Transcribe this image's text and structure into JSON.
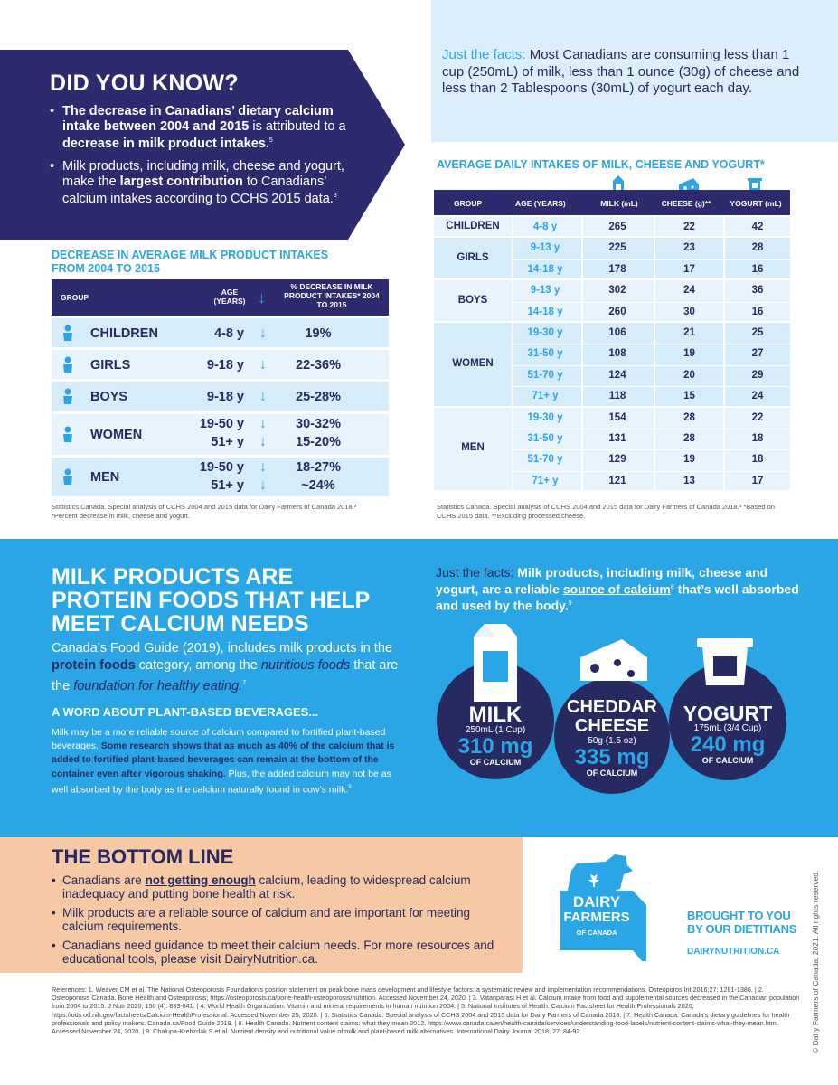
{
  "did_you_know": {
    "title": "DID YOU KNOW?",
    "bullet1_bold": "The decrease in Canadians’ dietary calcium intake between 2004 and 2015",
    "bullet1_mid": " is attributed to a ",
    "bullet1_bold2": "decrease in milk product intakes.",
    "bullet1_ref": "5",
    "bullet2_a": "Milk products, including milk, cheese and yogurt, make the ",
    "bullet2_bold": "largest contribution",
    "bullet2_b": " to Canadians’ calcium intakes according to CCHS 2015 data.",
    "bullet2_ref": "3"
  },
  "facts_top": {
    "lead": "Just the facts:",
    "text": " Most Canadians are consuming less than 1 cup (250mL) of milk, less than 1 ounce (30g) of cheese and less than 2 Tablespoons (30mL) of yogurt each day."
  },
  "left_table": {
    "title": "DECREASE IN AVERAGE MILK PRODUCT INTAKES FROM 2004 TO 2015",
    "headers": {
      "group": "GROUP",
      "age": "AGE (YEARS)",
      "pct": "% DECREASE IN MILK PRODUCT INTAKES* 2004 TO 2015"
    },
    "rows": [
      {
        "group": "CHILDREN",
        "ages": [
          "4-8 y"
        ],
        "pcts": [
          "19%"
        ]
      },
      {
        "group": "GIRLS",
        "ages": [
          "9-18 y"
        ],
        "pcts": [
          "22-36%"
        ]
      },
      {
        "group": "BOYS",
        "ages": [
          "9-18 y"
        ],
        "pcts": [
          "25-28%"
        ]
      },
      {
        "group": "WOMEN",
        "ages": [
          "19-50 y",
          "51+ y"
        ],
        "pcts": [
          "30-32%",
          "15-20%"
        ]
      },
      {
        "group": "MEN",
        "ages": [
          "19-50 y",
          "51+ y"
        ],
        "pcts": [
          "18-27%",
          "~24%"
        ]
      }
    ],
    "note": "Statistics Canada. Special analysis of CCHS 2004 and 2015 data for Dairy Farmers of Canada 2018.³ *Percent decrease in milk, cheese and yogurt."
  },
  "right_table": {
    "title": "AVERAGE DAILY INTAKES OF MILK, CHEESE AND YOGURT*",
    "headers": {
      "group": "GROUP",
      "age": "AGE (YEARS)",
      "milk": "MILK (mL)",
      "cheese": "CHEESE (g)**",
      "yogurt": "YOGURT (mL)"
    },
    "groups": [
      {
        "name": "CHILDREN",
        "rows": [
          [
            "4-8 y",
            "265",
            "22",
            "42"
          ]
        ]
      },
      {
        "name": "GIRLS",
        "rows": [
          [
            "9-13 y",
            "225",
            "23",
            "28"
          ],
          [
            "14-18 y",
            "178",
            "17",
            "16"
          ]
        ]
      },
      {
        "name": "BOYS",
        "rows": [
          [
            "9-13 y",
            "302",
            "24",
            "36"
          ],
          [
            "14-18 y",
            "260",
            "30",
            "16"
          ]
        ]
      },
      {
        "name": "WOMEN",
        "rows": [
          [
            "19-30 y",
            "106",
            "21",
            "25"
          ],
          [
            "31-50 y",
            "108",
            "19",
            "27"
          ],
          [
            "51-70 y",
            "124",
            "20",
            "29"
          ],
          [
            "71+ y",
            "118",
            "15",
            "24"
          ]
        ]
      },
      {
        "name": "MEN",
        "rows": [
          [
            "19-30 y",
            "154",
            "28",
            "22"
          ],
          [
            "31-50 y",
            "131",
            "28",
            "18"
          ],
          [
            "51-70 y",
            "129",
            "19",
            "18"
          ],
          [
            "71+ y",
            "121",
            "13",
            "17"
          ]
        ]
      }
    ],
    "note": "Statistics Canada. Special analysis of CCHS 2004 and 2015 data for Dairy Farmers of Canada 2018.³ *Based on CCHS 2015 data. **Excluding processed cheese."
  },
  "band": {
    "title": "MILK PRODUCTS ARE PROTEIN FOODS THAT HELP MEET CALCIUM NEEDS",
    "p1_a": "Canada’s Food Guide (2019), includes milk products in the ",
    "p1_bold": "protein foods",
    "p1_b": " category, among the ",
    "p1_it": "nutritious foods",
    "p1_c": " that are the ",
    "p1_it2": "foundation for healthy eating.",
    "p1_ref": "7",
    "h2": "A WORD ABOUT PLANT-BASED BEVERAGES...",
    "p2_a": "Milk may be a more reliable source of calcium compared to fortified plant-based beverages. ",
    "p2_bold": "Some research shows that as much as 40% of the calcium that is added to fortified plant-based beverages can remain at the bottom of the container even after vigorous shaking.",
    "p2_b": " Plus, the added calcium may not be as well absorbed by the body as the calcium naturally found in cow’s milk.",
    "p2_ref": "9"
  },
  "facts_mid": {
    "lead": "Just the facts:",
    "a": " Milk products, including milk, cheese and yogurt, are a reliable ",
    "link": "source of calcium",
    "ref": "8",
    "b": " that’s well absorbed and used by the body.",
    "ref2": "9"
  },
  "circles": [
    {
      "name": "MILK",
      "serving": "250mL (1 Cup)",
      "amount": "310 mg",
      "unit": "OF CALCIUM"
    },
    {
      "name": "CHEDDAR CHEESE",
      "serving": "50g (1.5 oz)",
      "amount": "335 mg",
      "unit": "OF CALCIUM"
    },
    {
      "name": "YOGURT",
      "serving": "175mL (3/4 Cup)",
      "amount": "240 mg",
      "unit": "OF CALCIUM"
    }
  ],
  "bottom_line": {
    "title": "THE BOTTOM LINE",
    "b1_a": "Canadians are ",
    "b1_bold": "not getting enough",
    "b1_b": " calcium, leading to widespread calcium inadequacy and putting bone health at risk.",
    "b2": "Milk products are a reliable source of calcium and are important for meeting calcium requirements.",
    "b3": "Canadians need guidance to meet their calcium needs. For more resources and educational tools, please visit DairyNutrition.ca."
  },
  "logo": {
    "line1": "DAIRY",
    "line2": "FARMERS",
    "line3": "OF CANADA"
  },
  "brought": {
    "l1": "BROUGHT TO YOU",
    "l2": "BY OUR DIETITIANS",
    "site": "DAIRYNUTRITION.CA"
  },
  "copyright": "© Dairy Farmers of Canada, 2021. All rights reserved.",
  "references": "References: 1. Weaver CM et al. The National Osteoporosis Foundation’s position statement on peak bone mass development and lifestyle factors: a systematic review and implementation recommendations. Osteoporos Int 2016;27: 1281-1386. | 2. Osteoporosis Canada. Bone Health and Osteoporosis; https://osteoporosis.ca/bone-health-osteoporosis/nutrition. Accessed November 24, 2020. | 3. Vatanparast H et al. Calcium intake from food and supplemental sources decreased in the Canadian population from 2004 to 2015. J Nutr 2020; 150 (4): 833-841. | 4. World Health Organization. Vitamin and mineral requirements in human nutrition 2004. | 5. National Institutes of Health. Calcium Factsheet for Health Professionals 2020; https://ods.od.nih.gov/factsheets/Calcium-HealthProfessional. Accessed November 25, 2020. | 6. Statistics Canada. Special analysis of CCHS 2004 and 2015 data for Dairy Farmers of Canada 2018. | 7. Health Canada. Canada’s dietary guidelines for health professionals and policy makers. Canada.ca/Food Guide 2019. | 8. Health Canada. Nutrient content claims: what they mean 2012. https://www.canada.ca/en/health-canada/services/understanding-food-labels/nutrient-content-claims-what-they-mean.html. Accessed November 24, 2020. | 9. Chalupa-Krebzdak S et al. Nutrient density and nutritional value of milk and plant-based milk alternatives. International Dairy Journal 2018; 27: 84-92."
}
